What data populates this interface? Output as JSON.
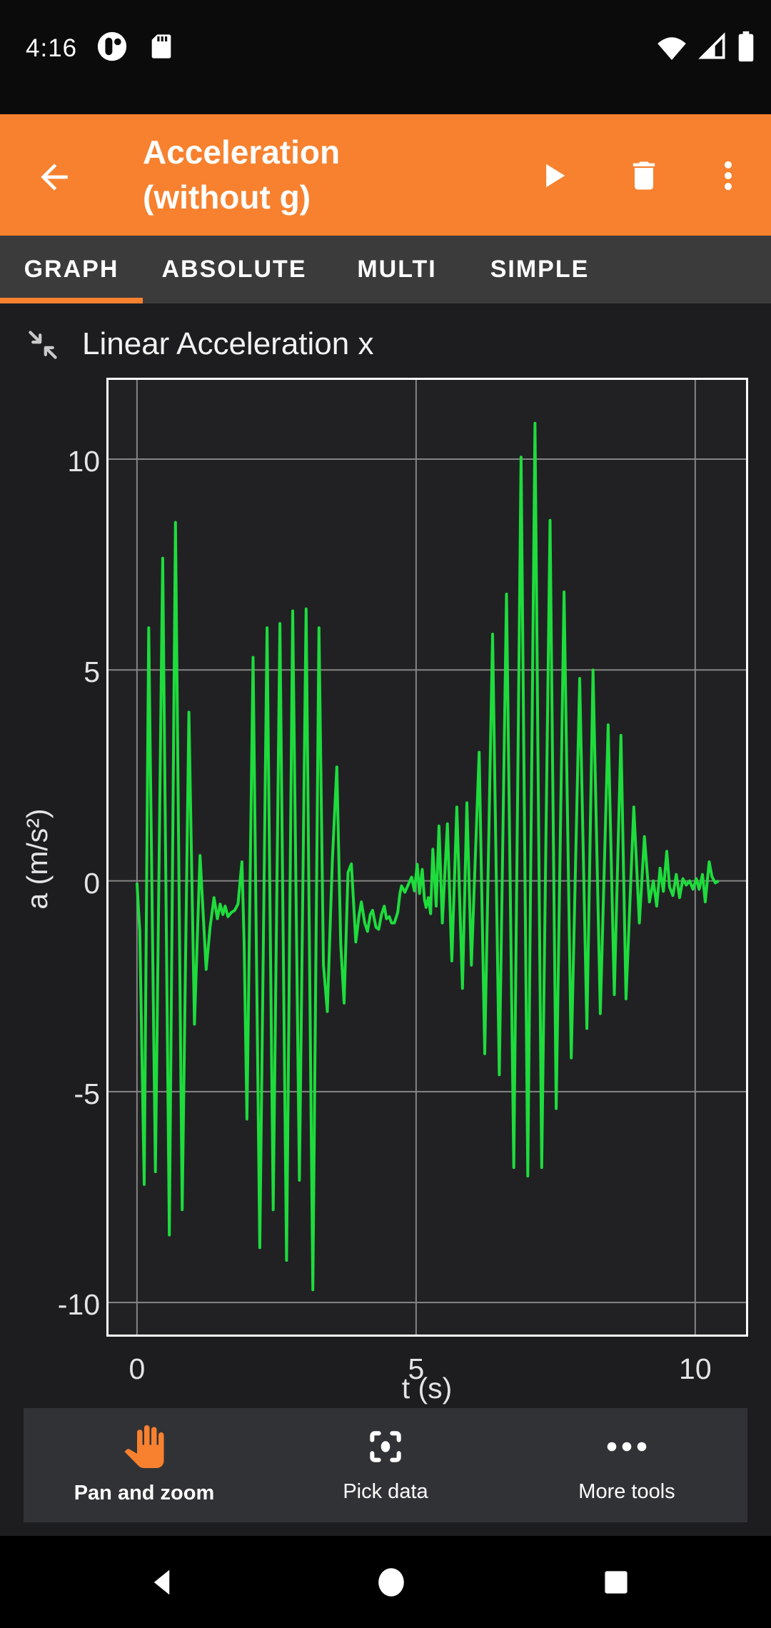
{
  "colors": {
    "accent_orange": "#F7812F",
    "line_green": "#1EDC3C",
    "grid_gray": "#858585",
    "chart_border": "#FFFFFF",
    "tab_bar_bg": "#3B3B3C",
    "toolbar_bg": "#313235",
    "content_bg": "#1D1D20"
  },
  "status_bar": {
    "time": "4:16",
    "icons_left": [
      "phyphox-notification-icon",
      "sd-card-icon"
    ],
    "icons_right": [
      "wifi-icon",
      "cell-signal-icon",
      "battery-icon"
    ]
  },
  "app_bar": {
    "title": "Acceleration (without g)",
    "actions": [
      "back",
      "play",
      "delete",
      "overflow-menu"
    ]
  },
  "tabs": {
    "items": [
      {
        "label": "GRAPH",
        "active": true
      },
      {
        "label": "ABSOLUTE",
        "active": false
      },
      {
        "label": "MULTI",
        "active": false
      },
      {
        "label": "SIMPLE",
        "active": false
      }
    ]
  },
  "graph": {
    "title": "Linear Acceleration x"
  },
  "chart_data": {
    "type": "line",
    "title": "Linear Acceleration x",
    "xlabel": "t (s)",
    "ylabel": "a (m/s²)",
    "xlim": [
      -0.51,
      10.91
    ],
    "ylim": [
      -10.76,
      11.88
    ],
    "x_ticks": [
      0,
      5,
      10
    ],
    "y_ticks": [
      10,
      5,
      0,
      -5,
      -10
    ],
    "grid": true,
    "legend": "none",
    "line_color": "#1EDC3C",
    "grid_color": "#858585",
    "series": [
      {
        "name": "Linear Acceleration x",
        "points": [
          [
            0.0,
            -0.05
          ],
          [
            0.05,
            -1.2
          ],
          [
            0.13,
            -7.2
          ],
          [
            0.21,
            6.0
          ],
          [
            0.33,
            -6.9
          ],
          [
            0.46,
            7.65
          ],
          [
            0.58,
            -8.4
          ],
          [
            0.69,
            8.5
          ],
          [
            0.81,
            -7.8
          ],
          [
            0.93,
            4.0
          ],
          [
            1.03,
            -3.4
          ],
          [
            1.13,
            0.6
          ],
          [
            1.24,
            -2.1
          ],
          [
            1.31,
            -1.1
          ],
          [
            1.38,
            -0.4
          ],
          [
            1.44,
            -0.9
          ],
          [
            1.49,
            -0.55
          ],
          [
            1.54,
            -0.8
          ],
          [
            1.58,
            -0.6
          ],
          [
            1.63,
            -0.85
          ],
          [
            1.69,
            -0.75
          ],
          [
            1.75,
            -0.7
          ],
          [
            1.81,
            -0.55
          ],
          [
            1.88,
            0.45
          ],
          [
            1.92,
            -1.5
          ],
          [
            1.97,
            -5.65
          ],
          [
            2.08,
            5.3
          ],
          [
            2.2,
            -8.7
          ],
          [
            2.33,
            6.0
          ],
          [
            2.44,
            -7.8
          ],
          [
            2.56,
            6.1
          ],
          [
            2.68,
            -9.0
          ],
          [
            2.79,
            6.4
          ],
          [
            2.91,
            -7.1
          ],
          [
            3.03,
            6.45
          ],
          [
            3.15,
            -9.7
          ],
          [
            3.26,
            6.0
          ],
          [
            3.34,
            -2.0
          ],
          [
            3.41,
            -3.1
          ],
          [
            3.5,
            0.5
          ],
          [
            3.58,
            2.7
          ],
          [
            3.65,
            -1.5
          ],
          [
            3.71,
            -2.9
          ],
          [
            3.78,
            0.2
          ],
          [
            3.84,
            0.4
          ],
          [
            3.92,
            -1.45
          ],
          [
            3.98,
            -0.8
          ],
          [
            4.02,
            -0.5
          ],
          [
            4.08,
            -1.0
          ],
          [
            4.13,
            -1.2
          ],
          [
            4.18,
            -0.8
          ],
          [
            4.22,
            -0.7
          ],
          [
            4.28,
            -1.1
          ],
          [
            4.33,
            -1.15
          ],
          [
            4.38,
            -0.8
          ],
          [
            4.43,
            -0.6
          ],
          [
            4.47,
            -0.9
          ],
          [
            4.52,
            -0.85
          ],
          [
            4.56,
            -1.0
          ],
          [
            4.61,
            -1.0
          ],
          [
            4.67,
            -0.75
          ],
          [
            4.71,
            -0.3
          ],
          [
            4.74,
            -0.12
          ],
          [
            4.8,
            -0.27
          ],
          [
            4.86,
            -0.09
          ],
          [
            4.92,
            0.09
          ],
          [
            4.97,
            -0.24
          ],
          [
            5.02,
            0.39
          ],
          [
            5.06,
            -0.3
          ],
          [
            5.11,
            0.27
          ],
          [
            5.15,
            -0.45
          ],
          [
            5.18,
            -0.63
          ],
          [
            5.22,
            -0.4
          ],
          [
            5.26,
            -0.78
          ],
          [
            5.3,
            0.75
          ],
          [
            5.36,
            -0.6
          ],
          [
            5.41,
            1.3
          ],
          [
            5.47,
            -1.0
          ],
          [
            5.56,
            1.35
          ],
          [
            5.64,
            -1.9
          ],
          [
            5.73,
            1.75
          ],
          [
            5.83,
            -2.55
          ],
          [
            5.91,
            1.85
          ],
          [
            5.99,
            -2.0
          ],
          [
            6.13,
            3.05
          ],
          [
            6.23,
            -4.1
          ],
          [
            6.37,
            5.85
          ],
          [
            6.49,
            -4.6
          ],
          [
            6.62,
            6.8
          ],
          [
            6.75,
            -6.8
          ],
          [
            6.88,
            10.05
          ],
          [
            7.0,
            -7.0
          ],
          [
            7.13,
            10.85
          ],
          [
            7.25,
            -6.8
          ],
          [
            7.4,
            8.55
          ],
          [
            7.51,
            -5.4
          ],
          [
            7.65,
            6.85
          ],
          [
            7.78,
            -4.2
          ],
          [
            7.93,
            4.8
          ],
          [
            8.06,
            -3.5
          ],
          [
            8.17,
            5.0
          ],
          [
            8.3,
            -3.15
          ],
          [
            8.44,
            3.7
          ],
          [
            8.55,
            -2.7
          ],
          [
            8.67,
            3.45
          ],
          [
            8.76,
            -2.8
          ],
          [
            8.9,
            1.75
          ],
          [
            9.0,
            -1.0
          ],
          [
            9.09,
            1.05
          ],
          [
            9.18,
            -0.5
          ],
          [
            9.25,
            0.0
          ],
          [
            9.31,
            -0.6
          ],
          [
            9.37,
            0.3
          ],
          [
            9.43,
            -0.25
          ],
          [
            9.49,
            0.7
          ],
          [
            9.54,
            -0.15
          ],
          [
            9.6,
            -0.35
          ],
          [
            9.66,
            0.15
          ],
          [
            9.72,
            -0.4
          ],
          [
            9.78,
            0.05
          ],
          [
            9.84,
            -0.1
          ],
          [
            9.9,
            0.0
          ],
          [
            9.96,
            -0.2
          ],
          [
            10.02,
            0.05
          ],
          [
            10.07,
            -0.2
          ],
          [
            10.13,
            0.15
          ],
          [
            10.18,
            -0.5
          ],
          [
            10.25,
            0.45
          ],
          [
            10.3,
            0.1
          ],
          [
            10.36,
            -0.05
          ],
          [
            10.42,
            0.0
          ]
        ]
      }
    ]
  },
  "toolbar": {
    "items": [
      {
        "label": "Pan and zoom",
        "icon": "hand-icon",
        "active": true
      },
      {
        "label": "Pick data",
        "icon": "pick-data-icon",
        "active": false
      },
      {
        "label": "More tools",
        "icon": "more-dots-icon",
        "active": false
      }
    ]
  },
  "nav_bar": {
    "buttons": [
      "back",
      "home",
      "recents"
    ]
  }
}
